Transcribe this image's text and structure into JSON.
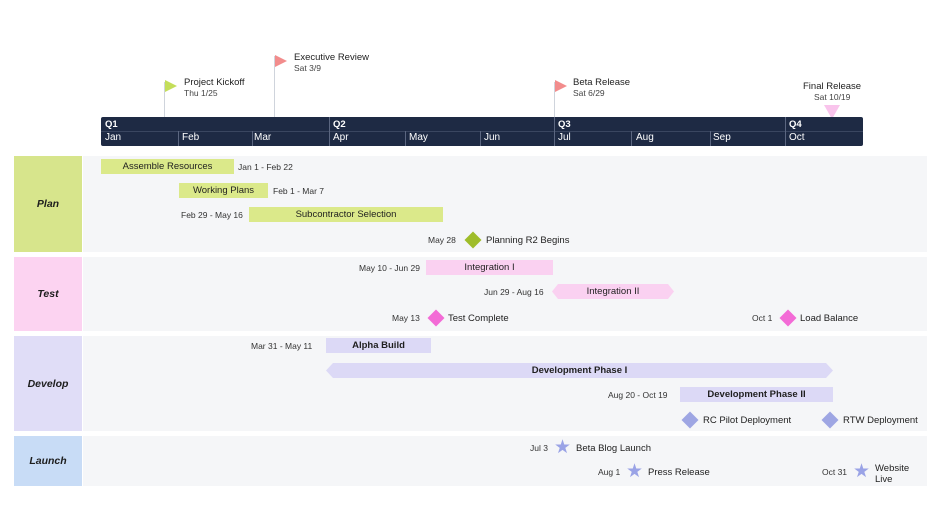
{
  "milestones": [
    {
      "title": "Project Kickoff",
      "date": "Thu 1/25"
    },
    {
      "title": "Executive Review",
      "date": "Sat 3/9"
    },
    {
      "title": "Beta Release",
      "date": "Sat 6/29"
    },
    {
      "title": "Final Release",
      "date": "Sat 10/19"
    }
  ],
  "timeline": {
    "quarters": [
      "Q1",
      "Q2",
      "Q3",
      "Q4"
    ],
    "months": [
      "Jan",
      "Feb",
      "Mar",
      "Apr",
      "May",
      "Jun",
      "Jul",
      "Aug",
      "Sep",
      "Oct"
    ]
  },
  "lanes": [
    "Plan",
    "Test",
    "Develop",
    "Launch"
  ],
  "plan": {
    "assemble": {
      "label": "Assemble Resources",
      "dates": "Jan 1 - Feb 22"
    },
    "working": {
      "label": "Working Plans",
      "dates": "Feb 1 - Mar 7"
    },
    "subcontractor": {
      "label": "Subcontractor Selection",
      "dates": "Feb 29 - May 16"
    },
    "r2": {
      "label": "Planning R2 Begins",
      "date": "May 28"
    }
  },
  "test": {
    "integration1": {
      "label": "Integration I",
      "dates": "May 10 - Jun 29"
    },
    "integration2": {
      "label": "Integration II",
      "dates": "Jun 29 - Aug 16"
    },
    "complete": {
      "label": "Test Complete",
      "date": "May 13"
    },
    "load": {
      "label": "Load Balance",
      "date": "Oct 1"
    }
  },
  "develop": {
    "alpha": {
      "label": "Alpha Build",
      "dates": "Mar 31 - May 11"
    },
    "phase1": {
      "label": "Development Phase I"
    },
    "phase2": {
      "label": "Development Phase II",
      "dates": "Aug 20 - Oct 19"
    },
    "rc": {
      "label": "RC Pilot Deployment"
    },
    "rtw": {
      "label": "RTW Deployment"
    }
  },
  "launch": {
    "blog": {
      "label": "Beta Blog Launch",
      "date": "Jul 3"
    },
    "press": {
      "label": "Press Release",
      "date": "Aug 1"
    },
    "website": {
      "label1": "Website",
      "label2": "Live",
      "date": "Oct 31"
    }
  },
  "colors": {
    "plan": "#dbe98a",
    "plan_lane": "#d7e58c",
    "test": "#fad1f1",
    "test_lane": "#fcd3f1",
    "develop": "#dcd9f6",
    "develop_lane": "#e0ddf7",
    "launch_lane": "#c8dcf6",
    "diamond_green": "#9fbd2a",
    "diamond_pink": "#f36bd6",
    "diamond_purple": "#9ea6e3",
    "flag_green": "#b4d64a",
    "flag_red": "#f28c8c",
    "timebar": "#1e2a44"
  }
}
